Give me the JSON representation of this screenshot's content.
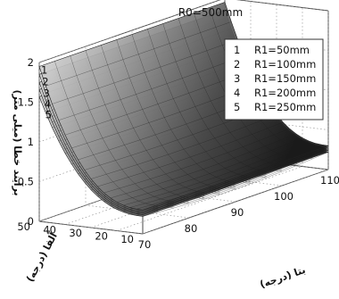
{
  "chart_data": {
    "type": "surface",
    "title": "R0=500mm",
    "zlabel": "برآیند خطا (میلی متر)",
    "xlabel": "بتا (درجه)",
    "ylabel": "آلفا (درجه)",
    "x_axis": {
      "name": "beta",
      "range": [
        70,
        110
      ],
      "ticks": [
        "70",
        "80",
        "90",
        "100",
        "110"
      ]
    },
    "y_axis": {
      "name": "alpha",
      "range": [
        10,
        50
      ],
      "ticks": [
        "10",
        "20",
        "30",
        "40",
        "50"
      ]
    },
    "z_axis": {
      "range": [
        0,
        2
      ],
      "ticks": [
        "0",
        "0.5",
        "1",
        "1.5",
        "2"
      ]
    },
    "legend": {
      "placement": "top-right",
      "entries": [
        {
          "index": "1",
          "label": "R1=50mm"
        },
        {
          "index": "2",
          "label": "R1=100mm"
        },
        {
          "index": "3",
          "label": "R1=150mm"
        },
        {
          "index": "4",
          "label": "R1=200mm"
        },
        {
          "index": "5",
          "label": "R1=250mm"
        }
      ]
    },
    "curve_labels": [
      "1",
      "2",
      "3",
      "4",
      "5"
    ],
    "series": [
      {
        "name": "R1=50mm",
        "z_at_alpha10": 0.3,
        "z_at_alpha50": 1.95
      },
      {
        "name": "R1=100mm",
        "z_at_alpha10": 0.28,
        "z_at_alpha50": 1.85
      },
      {
        "name": "R1=150mm",
        "z_at_alpha10": 0.26,
        "z_at_alpha50": 1.75
      },
      {
        "name": "R1=200mm",
        "z_at_alpha10": 0.24,
        "z_at_alpha50": 1.66
      },
      {
        "name": "R1=250mm",
        "z_at_alpha10": 0.22,
        "z_at_alpha50": 1.57
      }
    ],
    "grid": true,
    "colormap": "grayscale"
  }
}
